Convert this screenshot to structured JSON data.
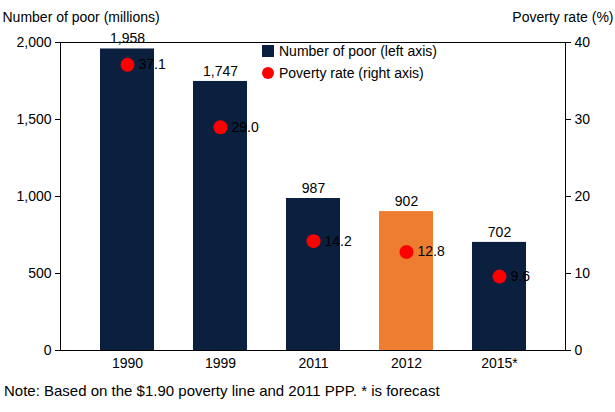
{
  "chart_data": {
    "type": "bar",
    "categories": [
      "1990",
      "1999",
      "2011",
      "2012",
      "2015*"
    ],
    "series": [
      {
        "name": "Number of poor (left axis)",
        "type": "bar",
        "color": "#0b1f3f",
        "colors": [
          "#0b1f3f",
          "#0b1f3f",
          "#0b1f3f",
          "#ed7d31",
          "#0b1f3f"
        ],
        "values": [
          1958,
          1747,
          987,
          902,
          702
        ],
        "value_labels": [
          "1,958",
          "1,747",
          "987",
          "902",
          "702"
        ]
      },
      {
        "name": "Poverty rate (right axis)",
        "type": "scatter",
        "axis": "y2",
        "color": "#ff0000",
        "marker": "circle",
        "values": [
          37.1,
          29.0,
          14.2,
          12.8,
          9.6
        ],
        "value_labels": [
          "37.1",
          "29.0",
          "14.2",
          "12.8",
          "9.6"
        ]
      }
    ],
    "y_label": "Number of poor (millions)",
    "y2_label": "Poverty rate (%)",
    "ylim": [
      0,
      2000
    ],
    "yticks": [
      0,
      500,
      {
        "value": 1000,
        "label": "1,000"
      },
      {
        "value": 1500,
        "label": "1,500"
      },
      {
        "value": 2000,
        "label": "2,000"
      }
    ],
    "y2lim": [
      0,
      40
    ],
    "y2ticks": [
      0,
      10,
      20,
      30,
      40
    ],
    "data_labels": true,
    "legend": "top",
    "note": "Note: Based on the $1.90 poverty line and 2011 PPP. * is forecast"
  }
}
